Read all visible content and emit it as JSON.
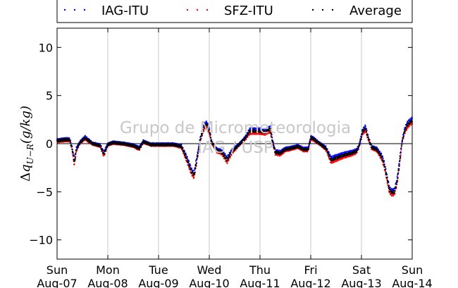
{
  "chart_data": {
    "type": "scatter",
    "ylabel": "Δq_{U−R}(g/kg)",
    "ylabel_parts": {
      "delta": "Δ",
      "q": "q",
      "sub": "U−R",
      "units": "(g/kg)"
    },
    "ylim": [
      -12,
      12
    ],
    "y_ticks": [
      "10",
      "5",
      "0",
      "−5",
      "−10"
    ],
    "y_tick_values": [
      10,
      5,
      0,
      -5,
      -10
    ],
    "xlim": [
      0,
      7
    ],
    "x_ticks": [
      {
        "value": 0,
        "day": "Sun",
        "date": "Aug-07"
      },
      {
        "value": 1,
        "day": "Mon",
        "date": "Aug-08"
      },
      {
        "value": 2,
        "day": "Tue",
        "date": "Aug-09"
      },
      {
        "value": 3,
        "day": "Wed",
        "date": "Aug-10"
      },
      {
        "value": 4,
        "day": "Thu",
        "date": "Aug-11"
      },
      {
        "value": 5,
        "day": "Fri",
        "date": "Aug-12"
      },
      {
        "value": 6,
        "day": "Sat",
        "date": "Aug-13"
      },
      {
        "value": 7,
        "day": "Sun",
        "date": "Aug-14"
      }
    ],
    "grid": "vertical",
    "legend_position": "top",
    "watermark": [
      "Grupo de Micrometeorologia",
      "IAG / USP"
    ],
    "series": [
      {
        "name": "IAG-ITU",
        "color": "#0000ff",
        "offset": 0.25
      },
      {
        "name": "SFZ-ITU",
        "color": "#ff0000",
        "offset": -0.25
      },
      {
        "name": "Average",
        "color": "#000000",
        "offset": 0
      }
    ],
    "avg_curve": [
      [
        0.0,
        0.3
      ],
      [
        0.15,
        0.4
      ],
      [
        0.25,
        0.4
      ],
      [
        0.3,
        -0.6
      ],
      [
        0.34,
        -2.0
      ],
      [
        0.38,
        -0.6
      ],
      [
        0.45,
        0.1
      ],
      [
        0.55,
        0.6
      ],
      [
        0.7,
        0.0
      ],
      [
        0.85,
        -0.2
      ],
      [
        0.92,
        -1.1
      ],
      [
        1.0,
        -0.1
      ],
      [
        1.1,
        0.1
      ],
      [
        1.3,
        0.0
      ],
      [
        1.5,
        -0.2
      ],
      [
        1.62,
        -0.5
      ],
      [
        1.7,
        0.2
      ],
      [
        1.85,
        -0.1
      ],
      [
        2.0,
        -0.1
      ],
      [
        2.3,
        -0.1
      ],
      [
        2.45,
        -0.3
      ],
      [
        2.55,
        -1.5
      ],
      [
        2.65,
        -2.9
      ],
      [
        2.7,
        -3.3
      ],
      [
        2.75,
        -1.8
      ],
      [
        2.82,
        0.4
      ],
      [
        2.9,
        1.8
      ],
      [
        2.95,
        2.0
      ],
      [
        3.0,
        1.3
      ],
      [
        3.05,
        0.1
      ],
      [
        3.15,
        -0.7
      ],
      [
        3.25,
        -0.9
      ],
      [
        3.35,
        -1.7
      ],
      [
        3.45,
        -0.8
      ],
      [
        3.55,
        -0.3
      ],
      [
        3.7,
        0.5
      ],
      [
        3.8,
        1.3
      ],
      [
        3.9,
        1.3
      ],
      [
        4.0,
        1.3
      ],
      [
        4.1,
        1.2
      ],
      [
        4.2,
        1.5
      ],
      [
        4.25,
        0.2
      ],
      [
        4.3,
        -0.9
      ],
      [
        4.4,
        -1.0
      ],
      [
        4.5,
        -0.6
      ],
      [
        4.6,
        -0.5
      ],
      [
        4.75,
        -0.3
      ],
      [
        4.85,
        -0.6
      ],
      [
        4.95,
        -0.6
      ],
      [
        5.0,
        0.6
      ],
      [
        5.05,
        0.5
      ],
      [
        5.2,
        -0.1
      ],
      [
        5.3,
        -0.5
      ],
      [
        5.4,
        -1.7
      ],
      [
        5.5,
        -1.5
      ],
      [
        5.65,
        -1.2
      ],
      [
        5.8,
        -1.0
      ],
      [
        5.9,
        -0.8
      ],
      [
        5.95,
        -0.3
      ],
      [
        6.02,
        1.2
      ],
      [
        6.08,
        1.6
      ],
      [
        6.12,
        0.8
      ],
      [
        6.2,
        -0.4
      ],
      [
        6.3,
        -0.6
      ],
      [
        6.4,
        -1.4
      ],
      [
        6.45,
        -2.2
      ],
      [
        6.5,
        -3.5
      ],
      [
        6.55,
        -4.8
      ],
      [
        6.6,
        -5.1
      ],
      [
        6.65,
        -5.0
      ],
      [
        6.7,
        -4.0
      ],
      [
        6.75,
        -2.0
      ],
      [
        6.8,
        0.2
      ],
      [
        6.85,
        1.3
      ],
      [
        6.9,
        1.9
      ],
      [
        6.95,
        2.2
      ],
      [
        7.0,
        2.4
      ]
    ]
  },
  "legend": {
    "items": [
      {
        "label": "IAG-ITU",
        "color": "#0000ff"
      },
      {
        "label": "SFZ-ITU",
        "color": "#ff0000"
      },
      {
        "label": "Average",
        "color": "#000000"
      }
    ]
  }
}
